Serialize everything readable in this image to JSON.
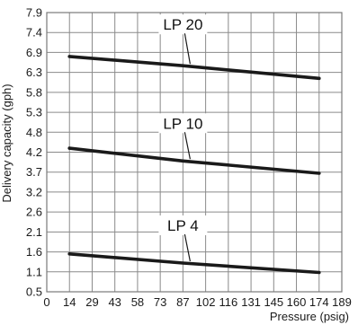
{
  "chart_data": {
    "type": "line",
    "title": "",
    "xlabel": "Pressure (psig)",
    "ylabel": "Delivery capacity (gph)",
    "x_ticks": [
      0,
      14,
      29,
      43,
      58,
      73,
      87,
      102,
      116,
      131,
      145,
      160,
      174,
      189
    ],
    "y_ticks": [
      0.5,
      1.1,
      1.6,
      2.1,
      2.6,
      3.2,
      3.7,
      4.2,
      4.8,
      5.3,
      5.8,
      6.3,
      6.9,
      7.4,
      7.9
    ],
    "xlim": [
      0,
      189
    ],
    "ylim": [
      0.5,
      7.9
    ],
    "grid": true,
    "series": [
      {
        "name": "LP 20",
        "x": [
          14,
          87,
          174
        ],
        "y": [
          6.78,
          6.5,
          6.15
        ]
      },
      {
        "name": "LP 10",
        "x": [
          14,
          87,
          174
        ],
        "y": [
          4.32,
          3.98,
          3.67
        ]
      },
      {
        "name": "LP 4",
        "x": [
          14,
          87,
          174
        ],
        "y": [
          1.55,
          1.32,
          1.08
        ]
      }
    ]
  }
}
